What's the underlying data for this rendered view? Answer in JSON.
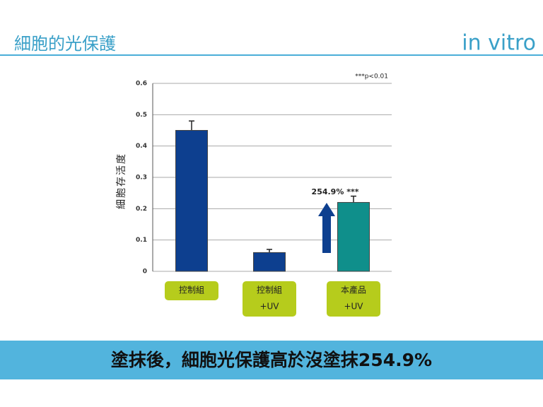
{
  "header": {
    "title": "細胞的光保護",
    "subtitle": "in vitro"
  },
  "chart_data": {
    "type": "bar",
    "y_label": "細胞存活度",
    "annotation": "***p<0.01",
    "categories": [
      [
        "控制組"
      ],
      [
        "控制組",
        "+UV"
      ],
      [
        "本產品",
        "+UV"
      ]
    ],
    "values": [
      0.45,
      0.06,
      0.22
    ],
    "errors": [
      0.03,
      0.01,
      0.02
    ],
    "colors": [
      "#0d3f8f",
      "#0d3f8f",
      "#0f8f8b"
    ],
    "bar_label": {
      "index": 2,
      "text": "254.9% ***"
    },
    "ylim": [
      0,
      0.6
    ],
    "yticks": [
      0,
      0.1,
      0.2,
      0.3,
      0.4,
      0.5,
      0.6
    ],
    "grid": true
  },
  "footer": {
    "text": "塗抹後，細胞光保護高於沒塗抹254.9%"
  }
}
